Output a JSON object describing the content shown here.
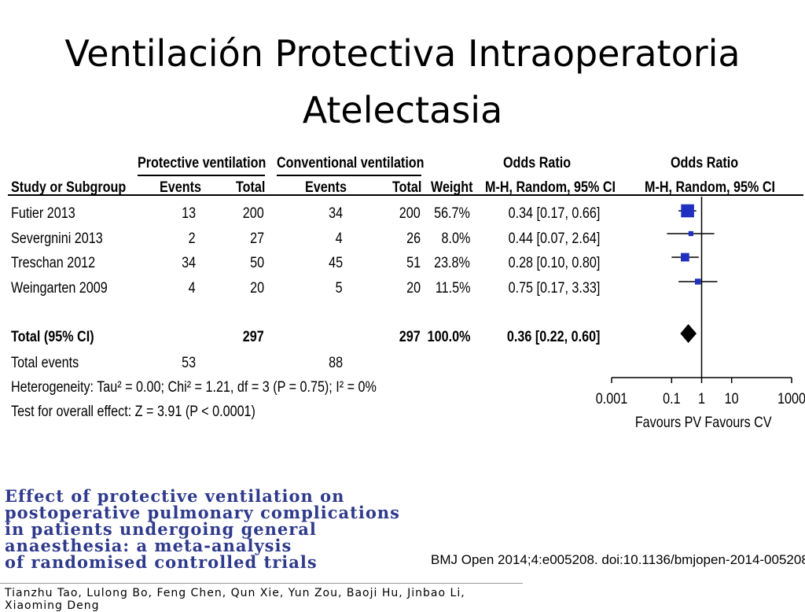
{
  "slide": {
    "title_line1": "Ventilación Protectiva Intraoperatoria",
    "title_line2": "Atelectasia"
  },
  "table": {
    "group_headers": {
      "protective": "Protective ventilation",
      "conventional": "Conventional ventilation",
      "or_text": "Odds Ratio",
      "or_plot": "Odds Ratio"
    },
    "col_headers": {
      "study": "Study or Subgroup",
      "pv_events": "Events",
      "pv_total": "Total",
      "cv_events": "Events",
      "cv_total": "Total",
      "weight": "Weight",
      "or_text": "M-H, Random, 95% CI",
      "or_plot": "M-H, Random, 95% CI"
    },
    "rows": [
      {
        "study": "Futier 2013",
        "pv_events": "13",
        "pv_total": "200",
        "cv_events": "34",
        "cv_total": "200",
        "weight": "56.7%",
        "ci": "0.34 [0.17, 0.66]"
      },
      {
        "study": "Severgnini 2013",
        "pv_events": "2",
        "pv_total": "27",
        "cv_events": "4",
        "cv_total": "26",
        "weight": "8.0%",
        "ci": "0.44 [0.07, 2.64]"
      },
      {
        "study": "Treschan 2012",
        "pv_events": "34",
        "pv_total": "50",
        "cv_events": "45",
        "cv_total": "51",
        "weight": "23.8%",
        "ci": "0.28 [0.10, 0.80]"
      },
      {
        "study": "Weingarten 2009",
        "pv_events": "4",
        "pv_total": "20",
        "cv_events": "5",
        "cv_total": "20",
        "weight": "11.5%",
        "ci": "0.75 [0.17, 3.33]"
      }
    ],
    "total": {
      "study": "Total (95% CI)",
      "pv_total": "297",
      "cv_total": "297",
      "weight": "100.0%",
      "ci": "0.36 [0.22, 0.60]"
    },
    "total_events": {
      "label": "Total events",
      "pv": "53",
      "cv": "88"
    },
    "heterogeneity": "Heterogeneity: Tau² = 0.00; Chi² = 1.21, df = 3 (P = 0.75); I² = 0%",
    "overall_effect": "Test for overall effect: Z = 3.91 (P < 0.0001)"
  },
  "chart_data": {
    "type": "forest",
    "scale": "log",
    "xlim": [
      0.001,
      1000
    ],
    "ticks": [
      "0.001",
      "0.1",
      "1",
      "10",
      "1000"
    ],
    "xlabel_left": "Favours PV",
    "xlabel_right": "Favours CV",
    "studies": [
      {
        "name": "Futier 2013",
        "or": 0.34,
        "lo": 0.17,
        "hi": 0.66,
        "weight": 56.7
      },
      {
        "name": "Severgnini 2013",
        "or": 0.44,
        "lo": 0.07,
        "hi": 2.64,
        "weight": 8.0
      },
      {
        "name": "Treschan 2012",
        "or": 0.28,
        "lo": 0.1,
        "hi": 0.8,
        "weight": 23.8
      },
      {
        "name": "Weingarten 2009",
        "or": 0.75,
        "lo": 0.17,
        "hi": 3.33,
        "weight": 11.5
      }
    ],
    "pooled": {
      "or": 0.36,
      "lo": 0.22,
      "hi": 0.6
    },
    "colors": {
      "box": "#1f2fbf",
      "line": "#000000"
    }
  },
  "paper": {
    "title_lines": [
      "Effect of protective ventilation on",
      "postoperative pulmonary complications",
      "in patients undergoing general",
      "anaesthesia: a meta-analysis",
      "of randomised controlled trials"
    ],
    "citation": "BMJ Open 2014;4:e005208. doi:10.1136/bmjopen-2014-005208",
    "authors_line1": "Tianzhu Tao, Lulong Bo, Feng Chen, Qun Xie, Yun Zou, Baoji Hu, Jinbao Li,",
    "authors_line2": "Xiaoming Deng"
  }
}
